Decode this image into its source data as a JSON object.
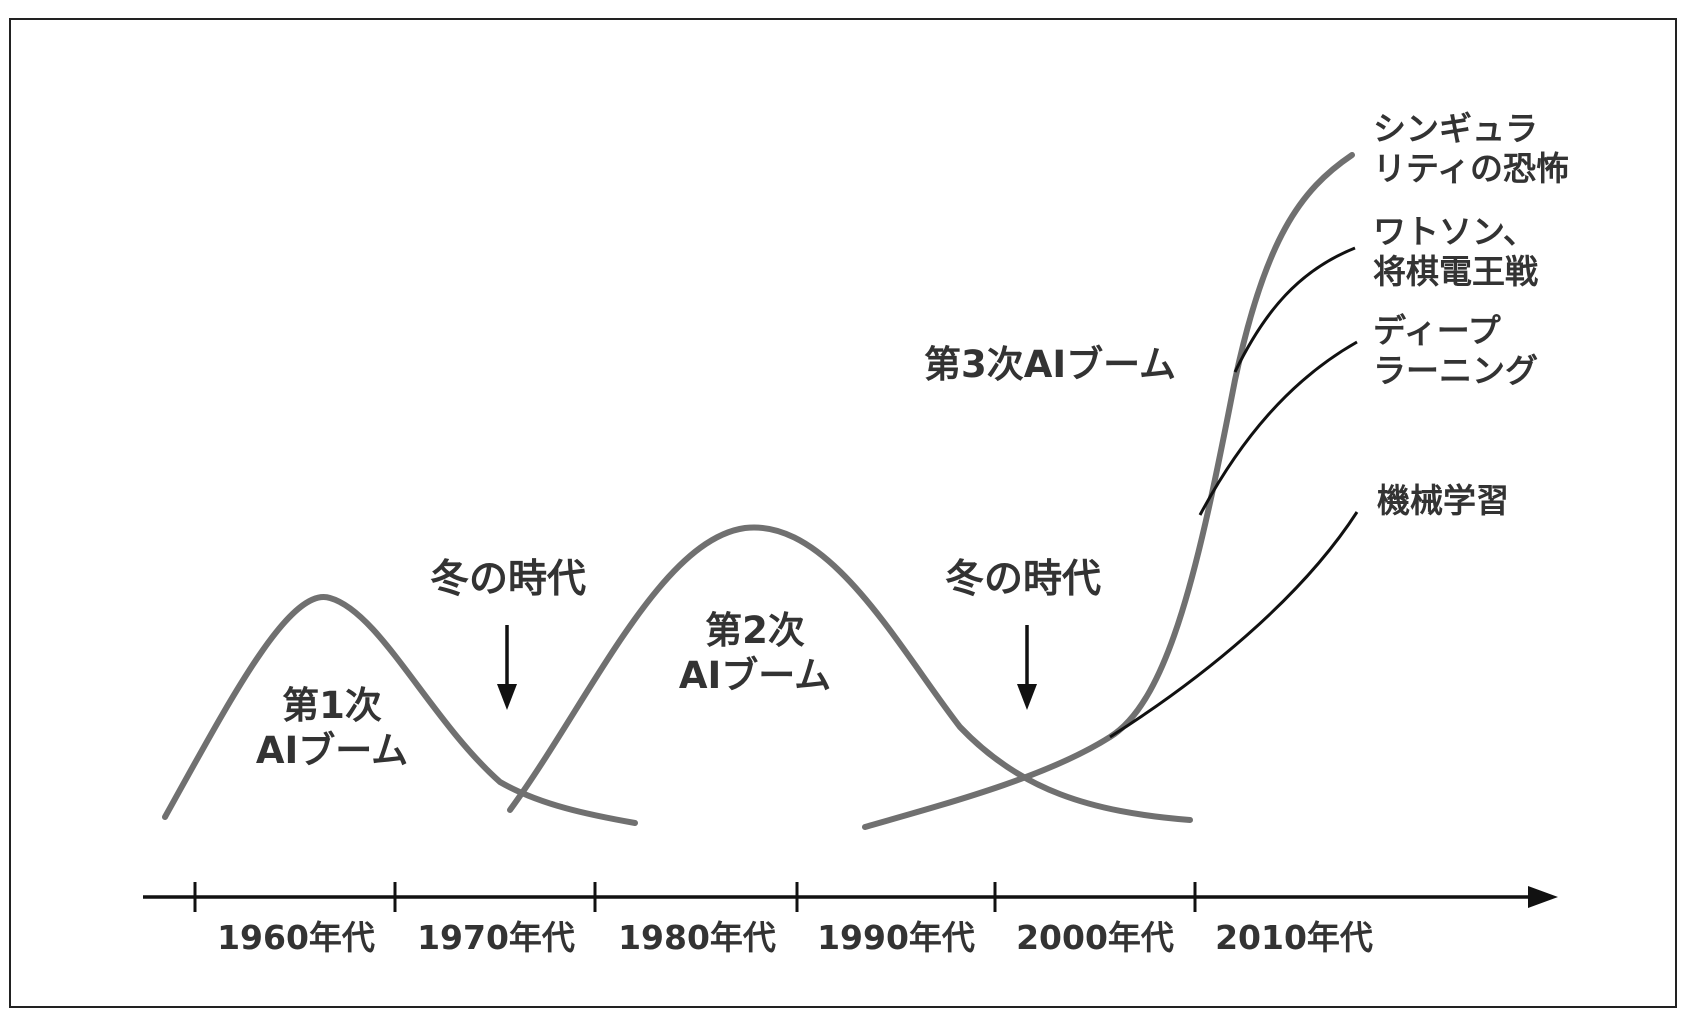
{
  "timeline": {
    "decades": [
      "1960年代",
      "1970年代",
      "1980年代",
      "1990年代",
      "2000年代",
      "2010年代"
    ]
  },
  "booms": [
    {
      "id": "first",
      "lines": [
        "第1次",
        "AIブーム"
      ]
    },
    {
      "id": "second",
      "lines": [
        "第2次",
        "AIブーム"
      ]
    },
    {
      "id": "third",
      "lines": [
        "第3次AIブーム"
      ]
    }
  ],
  "winters": [
    {
      "id": "winter1",
      "label": "冬の時代"
    },
    {
      "id": "winter2",
      "label": "冬の時代"
    }
  ],
  "branches": [
    {
      "id": "singularity",
      "lines": [
        "シンギュラ",
        "リティの恐怖"
      ]
    },
    {
      "id": "watson",
      "lines": [
        "ワトソン、",
        "将棋電王戦"
      ]
    },
    {
      "id": "deep-learning",
      "lines": [
        "ディープ",
        "ラーニング"
      ]
    },
    {
      "id": "machine-learning",
      "lines": [
        "機械学習"
      ]
    }
  ],
  "colors": {
    "boom_curve": "#707070",
    "branch_line": "#111111",
    "axis": "#111111",
    "text": "#333333"
  }
}
